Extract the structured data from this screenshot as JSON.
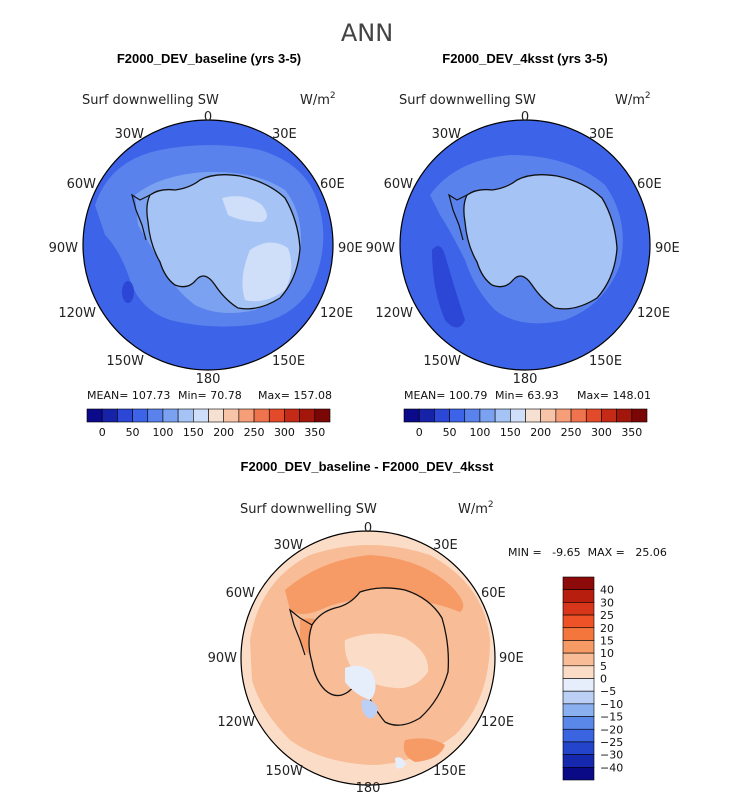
{
  "suptitle": "ANN",
  "chart_data": [
    {
      "type": "heatmap",
      "projection": "south-polar-stereographic",
      "title": "F2000_DEV_baseline (yrs 3-5)",
      "variable": "Surf downwelling SW",
      "units": "W/m",
      "units_exp": "2",
      "lon_labels": [
        "0",
        "30E",
        "60E",
        "90E",
        "120E",
        "150E",
        "180",
        "150W",
        "120W",
        "90W",
        "60W",
        "30W"
      ],
      "stats": {
        "mean": "MEAN= 107.73",
        "min": "Min= 70.78",
        "max": "Max= 157.08"
      },
      "colorbar": {
        "ticks": [
          "0",
          "50",
          "100",
          "150",
          "200",
          "250",
          "300",
          "350"
        ],
        "colors": [
          "#0a0a8a",
          "#1622a8",
          "#2c46d6",
          "#3d63e8",
          "#5a82ec",
          "#7ba2f0",
          "#a6c3f6",
          "#cfdef9",
          "#f5e0d2",
          "#f7c4a8",
          "#f59e78",
          "#ef744e",
          "#e24a2a",
          "#c42a16",
          "#a3160c",
          "#7a0606"
        ]
      }
    },
    {
      "type": "heatmap",
      "projection": "south-polar-stereographic",
      "title": "F2000_DEV_4ksst (yrs 3-5)",
      "variable": "Surf downwelling SW",
      "units": "W/m",
      "units_exp": "2",
      "lon_labels": [
        "0",
        "30E",
        "60E",
        "90E",
        "120E",
        "150E",
        "180",
        "150W",
        "120W",
        "90W",
        "60W",
        "30W"
      ],
      "stats": {
        "mean": "MEAN= 100.79",
        "min": "Min= 63.93",
        "max": "Max= 148.01"
      },
      "colorbar": {
        "ticks": [
          "0",
          "50",
          "100",
          "150",
          "200",
          "250",
          "300",
          "350"
        ],
        "colors": [
          "#0a0a8a",
          "#1622a8",
          "#2c46d6",
          "#3d63e8",
          "#5a82ec",
          "#7ba2f0",
          "#a6c3f6",
          "#cfdef9",
          "#f5e0d2",
          "#f7c4a8",
          "#f59e78",
          "#ef744e",
          "#e24a2a",
          "#c42a16",
          "#a3160c",
          "#7a0606"
        ]
      }
    },
    {
      "type": "heatmap",
      "projection": "south-polar-stereographic",
      "title": "F2000_DEV_baseline - F2000_DEV_4ksst",
      "variable": "Surf downwelling SW",
      "units": "W/m",
      "units_exp": "2",
      "lon_labels": [
        "0",
        "30E",
        "60E",
        "90E",
        "120E",
        "150E",
        "180",
        "150W",
        "120W",
        "90W",
        "60W",
        "30W"
      ],
      "stats": {
        "minmax": "MIN =   -9.65  MAX =   25.06"
      },
      "colorbar": {
        "ticks": [
          "40",
          "30",
          "25",
          "20",
          "15",
          "10",
          "5",
          "0",
          "−5",
          "−10",
          "−15",
          "−20",
          "−25",
          "−30",
          "−40"
        ],
        "colors": [
          "#8c0a0a",
          "#b81e0e",
          "#d8361a",
          "#ee5226",
          "#f4763c",
          "#f69a66",
          "#f8bc96",
          "#fbdcc6",
          "#e6eefc",
          "#bcd0f6",
          "#8ab0f0",
          "#5a88e8",
          "#3a64e0",
          "#2444cc",
          "#1628ae",
          "#0a0a86"
        ]
      }
    }
  ]
}
